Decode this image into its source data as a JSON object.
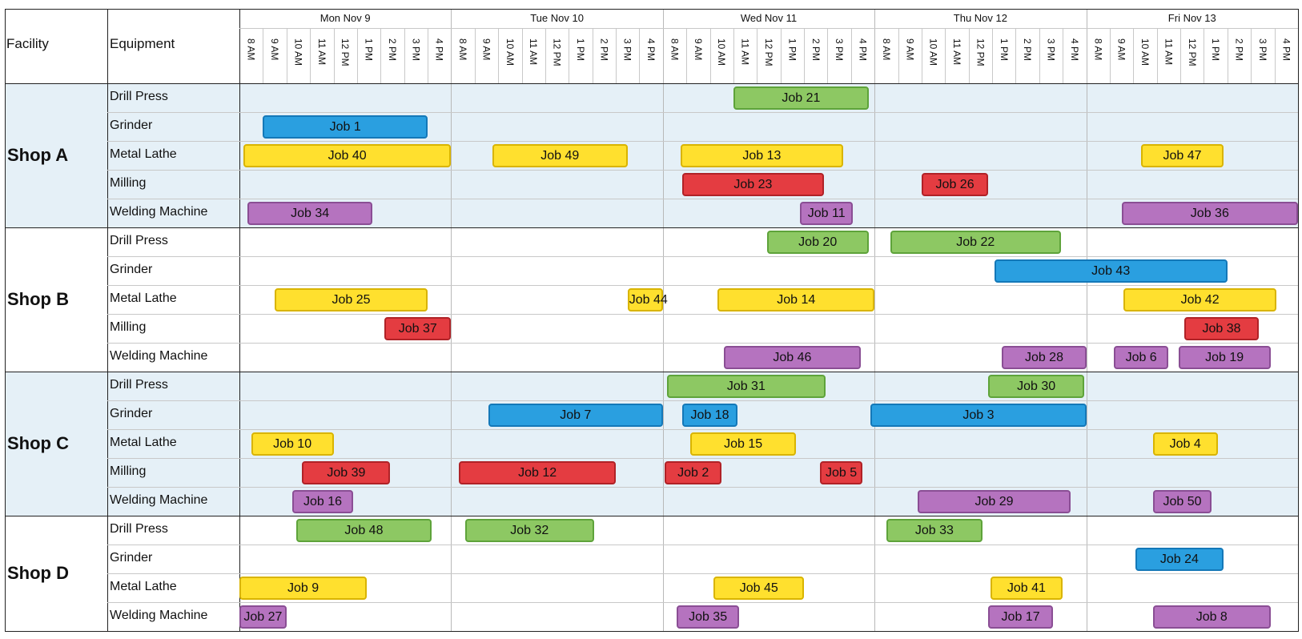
{
  "chart_data": {
    "type": "gantt",
    "header": {
      "facility": "Facility",
      "equipment": "Equipment"
    },
    "days": [
      "Mon Nov 9",
      "Tue Nov 10",
      "Wed Nov 11",
      "Thu Nov 12",
      "Fri Nov 13"
    ],
    "hours": [
      "8 AM",
      "9 AM",
      "10 AM",
      "11 AM",
      "12 PM",
      "1 PM",
      "2 PM",
      "3 PM",
      "4 PM"
    ],
    "day_hours": [
      8,
      17
    ],
    "categories": [
      "Drill Press",
      "Grinder",
      "Metal Lathe",
      "Milling",
      "Welding Machine"
    ],
    "colors": {
      "Drill Press": {
        "fill": "#8dc863",
        "stroke": "#5ea33a"
      },
      "Grinder": {
        "fill": "#2a9fe0",
        "stroke": "#1478b8"
      },
      "Metal Lathe": {
        "fill": "#ffe02e",
        "stroke": "#d9b400"
      },
      "Milling": {
        "fill": "#e43c41",
        "stroke": "#b02227"
      },
      "Welding Machine": {
        "fill": "#b573bf",
        "stroke": "#8a4e94"
      }
    },
    "shade_color": "#e5f0f7",
    "facilities": [
      {
        "name": "Shop A",
        "shaded": true,
        "equipment": [
          "Drill Press",
          "Grinder",
          "Metal Lathe",
          "Milling",
          "Welding Machine"
        ]
      },
      {
        "name": "Shop B",
        "shaded": false,
        "equipment": [
          "Drill Press",
          "Grinder",
          "Metal Lathe",
          "Milling",
          "Welding Machine"
        ]
      },
      {
        "name": "Shop C",
        "shaded": true,
        "equipment": [
          "Drill Press",
          "Grinder",
          "Metal Lathe",
          "Milling",
          "Welding Machine"
        ]
      },
      {
        "name": "Shop D",
        "shaded": false,
        "equipment": [
          "Drill Press",
          "Grinder",
          "Metal Lathe",
          "Welding Machine"
        ]
      }
    ],
    "jobs": [
      {
        "name": "Job 21",
        "facility": "Shop A",
        "equipment": "Drill Press",
        "start": "Wed 11:00",
        "end": "Wed 16:45"
      },
      {
        "name": "Job 1",
        "facility": "Shop A",
        "equipment": "Grinder",
        "start": "Mon 9:00",
        "end": "Mon 16:00"
      },
      {
        "name": "Job 40",
        "facility": "Shop A",
        "equipment": "Metal Lathe",
        "start": "Mon 8:10",
        "end": "Tue 8:00"
      },
      {
        "name": "Job 49",
        "facility": "Shop A",
        "equipment": "Metal Lathe",
        "start": "Tue 9:45",
        "end": "Tue 15:30"
      },
      {
        "name": "Job 13",
        "facility": "Shop A",
        "equipment": "Metal Lathe",
        "start": "Wed 8:45",
        "end": "Wed 15:40"
      },
      {
        "name": "Job 47",
        "facility": "Shop A",
        "equipment": "Metal Lathe",
        "start": "Fri 10:20",
        "end": "Fri 13:50"
      },
      {
        "name": "Job 23",
        "facility": "Shop A",
        "equipment": "Milling",
        "start": "Wed 8:50",
        "end": "Wed 14:50"
      },
      {
        "name": "Job 26",
        "facility": "Shop A",
        "equipment": "Milling",
        "start": "Thu 10:00",
        "end": "Thu 12:50"
      },
      {
        "name": "Job 34",
        "facility": "Shop A",
        "equipment": "Welding Machine",
        "start": "Mon 8:20",
        "end": "Mon 13:40"
      },
      {
        "name": "Job 11",
        "facility": "Shop A",
        "equipment": "Welding Machine",
        "start": "Wed 13:50",
        "end": "Wed 16:05"
      },
      {
        "name": "Job 36",
        "facility": "Shop A",
        "equipment": "Welding Machine",
        "start": "Fri 9:30",
        "end": "Fri 17:00"
      },
      {
        "name": "Job 20",
        "facility": "Shop B",
        "equipment": "Drill Press",
        "start": "Wed 12:25",
        "end": "Wed 16:45"
      },
      {
        "name": "Job 22",
        "facility": "Shop B",
        "equipment": "Drill Press",
        "start": "Thu 8:40",
        "end": "Thu 15:55"
      },
      {
        "name": "Job 43",
        "facility": "Shop B",
        "equipment": "Grinder",
        "start": "Thu 13:05",
        "end": "Fri 14:00"
      },
      {
        "name": "Job 25",
        "facility": "Shop B",
        "equipment": "Metal Lathe",
        "start": "Mon 9:30",
        "end": "Mon 16:00"
      },
      {
        "name": "Job 44",
        "facility": "Shop B",
        "equipment": "Metal Lathe",
        "start": "Tue 15:30",
        "end": "Tue 17:00"
      },
      {
        "name": "Job 14",
        "facility": "Shop B",
        "equipment": "Metal Lathe",
        "start": "Wed 10:20",
        "end": "Wed 17:00"
      },
      {
        "name": "Job 42",
        "facility": "Shop B",
        "equipment": "Metal Lathe",
        "start": "Fri 9:35",
        "end": "Fri 16:05"
      },
      {
        "name": "Job 37",
        "facility": "Shop B",
        "equipment": "Milling",
        "start": "Mon 14:10",
        "end": "Mon 17:00"
      },
      {
        "name": "Job 38",
        "facility": "Shop B",
        "equipment": "Milling",
        "start": "Fri 12:10",
        "end": "Fri 15:20"
      },
      {
        "name": "Job 46",
        "facility": "Shop B",
        "equipment": "Welding Machine",
        "start": "Wed 10:35",
        "end": "Wed 16:25"
      },
      {
        "name": "Job 28",
        "facility": "Shop B",
        "equipment": "Welding Machine",
        "start": "Thu 13:25",
        "end": "Thu 17:00"
      },
      {
        "name": "Job 6",
        "facility": "Shop B",
        "equipment": "Welding Machine",
        "start": "Fri 9:10",
        "end": "Fri 11:30"
      },
      {
        "name": "Job 19",
        "facility": "Shop B",
        "equipment": "Welding Machine",
        "start": "Fri 11:55",
        "end": "Fri 15:50"
      },
      {
        "name": "Job 31",
        "facility": "Shop C",
        "equipment": "Drill Press",
        "start": "Wed 8:10",
        "end": "Wed 14:55"
      },
      {
        "name": "Job 30",
        "facility": "Shop C",
        "equipment": "Drill Press",
        "start": "Thu 12:50",
        "end": "Thu 16:55"
      },
      {
        "name": "Job 7",
        "facility": "Shop C",
        "equipment": "Grinder",
        "start": "Tue 9:35",
        "end": "Tue 17:00"
      },
      {
        "name": "Job 18",
        "facility": "Shop C",
        "equipment": "Grinder",
        "start": "Wed 8:50",
        "end": "Wed 11:10"
      },
      {
        "name": "Job 3",
        "facility": "Shop C",
        "equipment": "Grinder",
        "start": "Wed 16:50",
        "end": "Thu 17:00"
      },
      {
        "name": "Job 10",
        "facility": "Shop C",
        "equipment": "Metal Lathe",
        "start": "Mon 8:30",
        "end": "Mon 12:00"
      },
      {
        "name": "Job 15",
        "facility": "Shop C",
        "equipment": "Metal Lathe",
        "start": "Wed 9:10",
        "end": "Wed 13:40"
      },
      {
        "name": "Job 4",
        "facility": "Shop C",
        "equipment": "Metal Lathe",
        "start": "Fri 10:50",
        "end": "Fri 13:35"
      },
      {
        "name": "Job 39",
        "facility": "Shop C",
        "equipment": "Milling",
        "start": "Mon 10:40",
        "end": "Mon 14:25"
      },
      {
        "name": "Job 12",
        "facility": "Shop C",
        "equipment": "Milling",
        "start": "Tue 8:20",
        "end": "Tue 15:00"
      },
      {
        "name": "Job 2",
        "facility": "Shop C",
        "equipment": "Milling",
        "start": "Wed 8:05",
        "end": "Wed 10:30"
      },
      {
        "name": "Job 5",
        "facility": "Shop C",
        "equipment": "Milling",
        "start": "Wed 14:40",
        "end": "Wed 16:30"
      },
      {
        "name": "Job 16",
        "facility": "Shop C",
        "equipment": "Welding Machine",
        "start": "Mon 10:15",
        "end": "Mon 12:50"
      },
      {
        "name": "Job 29",
        "facility": "Shop C",
        "equipment": "Welding Machine",
        "start": "Thu 9:50",
        "end": "Thu 16:20"
      },
      {
        "name": "Job 50",
        "facility": "Shop C",
        "equipment": "Welding Machine",
        "start": "Fri 10:50",
        "end": "Fri 13:20"
      },
      {
        "name": "Job 48",
        "facility": "Shop D",
        "equipment": "Drill Press",
        "start": "Mon 10:25",
        "end": "Mon 16:10"
      },
      {
        "name": "Job 32",
        "facility": "Shop D",
        "equipment": "Drill Press",
        "start": "Tue 8:35",
        "end": "Tue 14:05"
      },
      {
        "name": "Job 33",
        "facility": "Shop D",
        "equipment": "Drill Press",
        "start": "Thu 8:30",
        "end": "Thu 12:35"
      },
      {
        "name": "Job 24",
        "facility": "Shop D",
        "equipment": "Grinder",
        "start": "Fri 10:05",
        "end": "Fri 13:50"
      },
      {
        "name": "Job 9",
        "facility": "Shop D",
        "equipment": "Metal Lathe",
        "start": "Mon 8:00",
        "end": "Mon 13:25"
      },
      {
        "name": "Job 45",
        "facility": "Shop D",
        "equipment": "Metal Lathe",
        "start": "Wed 10:10",
        "end": "Wed 14:00"
      },
      {
        "name": "Job 41",
        "facility": "Shop D",
        "equipment": "Metal Lathe",
        "start": "Thu 12:55",
        "end": "Thu 16:00"
      },
      {
        "name": "Job 27",
        "facility": "Shop D",
        "equipment": "Welding Machine",
        "start": "Mon 8:00",
        "end": "Mon 10:00"
      },
      {
        "name": "Job 35",
        "facility": "Shop D",
        "equipment": "Welding Machine",
        "start": "Wed 8:35",
        "end": "Wed 11:15"
      },
      {
        "name": "Job 17",
        "facility": "Shop D",
        "equipment": "Welding Machine",
        "start": "Thu 12:50",
        "end": "Thu 15:35"
      },
      {
        "name": "Job 8",
        "facility": "Shop D",
        "equipment": "Welding Machine",
        "start": "Fri 10:50",
        "end": "Fri 15:50"
      }
    ]
  }
}
